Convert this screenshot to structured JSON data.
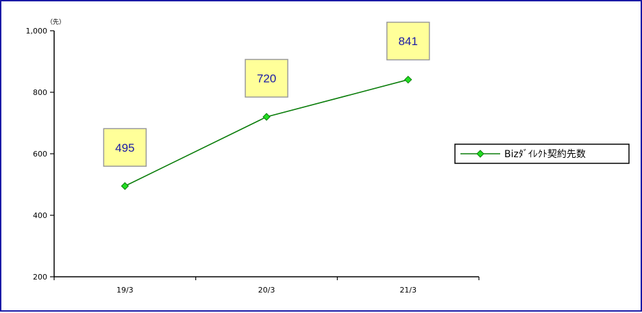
{
  "chart_data": {
    "type": "line",
    "y_unit": "（先）",
    "categories": [
      "19/3",
      "20/3",
      "21/3"
    ],
    "series": [
      {
        "name": "Bizﾀﾞｲﾚｸﾄ契約先数",
        "values": [
          495,
          720,
          841
        ]
      }
    ],
    "ylim": [
      200,
      1000
    ],
    "yticks": [
      "200",
      "400",
      "600",
      "800",
      "1,000"
    ],
    "ytick_values": [
      200,
      400,
      600,
      800,
      1000
    ],
    "grid": false,
    "legend_position": "right",
    "colors": {
      "line": "#0a7d0a",
      "marker_fill": "#22dd22",
      "marker_stroke": "#0a7d0a",
      "label_box_fill": "#ffff99",
      "label_box_stroke": "#9a9a9a",
      "label_text": "#1a1aa6",
      "frame_border": "#1a1aa6",
      "axis": "#000000"
    }
  }
}
